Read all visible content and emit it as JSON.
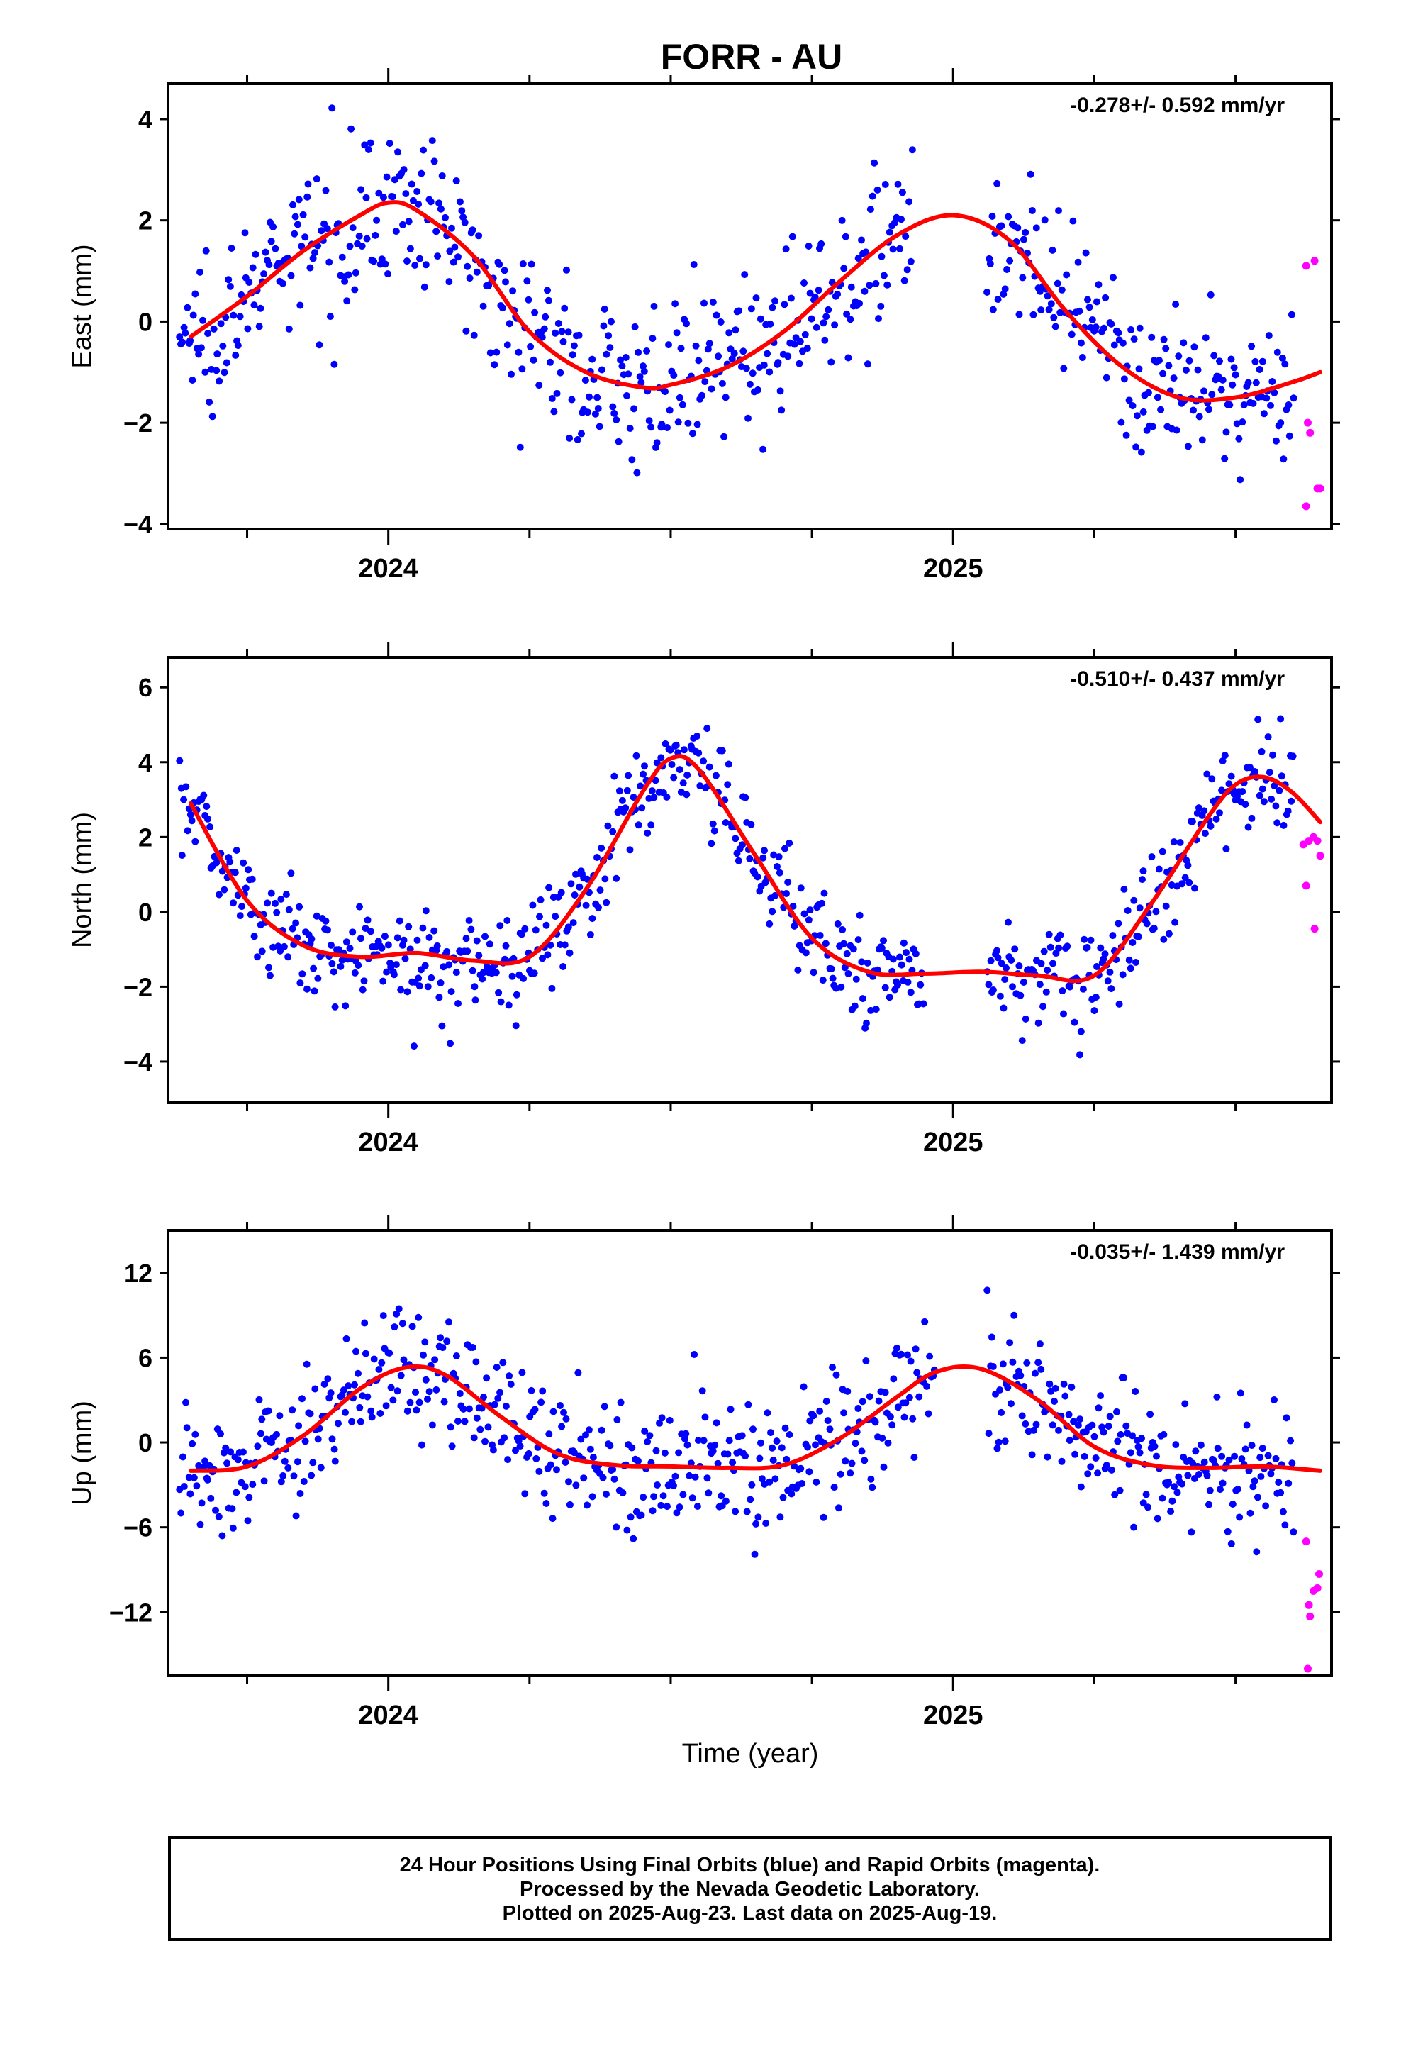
{
  "title": "FORR - AU",
  "x_axis_label": "Time (year)",
  "footer": {
    "line1": "24 Hour Positions Using Final Orbits (blue) and Rapid Orbits (magenta).",
    "line2": "Processed by the Nevada Geodetic Laboratory.",
    "line3": "Plotted on 2025-Aug-23. Last data on 2025-Aug-19."
  },
  "colors": {
    "final": "#0000ff",
    "rapid": "#ff00ff",
    "fit": "#ff0000",
    "axis": "#000000"
  },
  "chart_data": [
    {
      "type": "scatter",
      "component": "east",
      "ylabel": "East (mm)",
      "rate_text": "-0.278+/- 0.592 mm/yr",
      "xlim": [
        2023.61,
        2025.67
      ],
      "ylim": [
        -4.1,
        4.7
      ],
      "yticks": [
        -4,
        -2,
        0,
        2,
        4
      ],
      "xticks_major": [
        2024,
        2025
      ],
      "xtick_labels": [
        "2024",
        "2025"
      ],
      "xticks_minor": [
        2023.75,
        2024.25,
        2024.5,
        2024.75,
        2025.25,
        2025.5
      ],
      "fit_curve": {
        "x": [
          2023.65,
          2023.75,
          2023.85,
          2023.95,
          2024.0,
          2024.05,
          2024.15,
          2024.25,
          2024.35,
          2024.45,
          2024.5,
          2024.6,
          2024.7,
          2024.8,
          2024.9,
          2025.0,
          2025.1,
          2025.2,
          2025.3,
          2025.4,
          2025.5,
          2025.6,
          2025.65
        ],
        "y": [
          -0.3,
          0.5,
          1.4,
          2.1,
          2.35,
          2.2,
          1.3,
          -0.2,
          -1.0,
          -1.3,
          -1.25,
          -0.9,
          -0.2,
          0.8,
          1.7,
          2.1,
          1.6,
          0.2,
          -0.9,
          -1.5,
          -1.5,
          -1.2,
          -1.0
        ]
      },
      "final_scatter": 0.75,
      "rapid_points": {
        "x": [
          2025.625,
          2025.64,
          2025.628,
          2025.632,
          2025.625,
          2025.645,
          2025.65
        ],
        "y": [
          1.1,
          1.2,
          -2.0,
          -2.2,
          -3.65,
          -3.3,
          -3.3
        ]
      }
    },
    {
      "type": "scatter",
      "component": "north",
      "ylabel": "North (mm)",
      "rate_text": "-0.510+/- 0.437 mm/yr",
      "xlim": [
        2023.61,
        2025.67
      ],
      "ylim": [
        -5.1,
        6.8
      ],
      "yticks": [
        -4,
        -2,
        0,
        2,
        4,
        6
      ],
      "xticks_major": [
        2024,
        2025
      ],
      "xtick_labels": [
        "2024",
        "2025"
      ],
      "xticks_minor": [
        2023.75,
        2024.25,
        2024.5,
        2024.75,
        2025.25,
        2025.5
      ],
      "fit_curve": {
        "x": [
          2023.65,
          2023.75,
          2023.85,
          2023.95,
          2024.05,
          2024.15,
          2024.25,
          2024.35,
          2024.45,
          2024.5,
          2024.55,
          2024.65,
          2024.75,
          2024.85,
          2024.95,
          2025.05,
          2025.15,
          2025.25,
          2025.35,
          2025.45,
          2025.5,
          2025.55,
          2025.6,
          2025.65
        ],
        "y": [
          2.9,
          0.3,
          -0.9,
          -1.2,
          -1.1,
          -1.3,
          -1.2,
          0.6,
          3.2,
          4.1,
          3.8,
          1.5,
          -0.7,
          -1.6,
          -1.65,
          -1.6,
          -1.7,
          -1.7,
          0.2,
          2.5,
          3.4,
          3.6,
          3.2,
          2.4
        ]
      },
      "final_scatter": 0.7,
      "rapid_points": {
        "x": [
          2025.62,
          2025.625,
          2025.63,
          2025.638,
          2025.645,
          2025.65,
          2025.64
        ],
        "y": [
          1.8,
          0.7,
          1.9,
          2.0,
          1.9,
          1.5,
          -0.45
        ]
      }
    },
    {
      "type": "scatter",
      "component": "up",
      "ylabel": "Up (mm)",
      "rate_text": "-0.035+/- 1.439 mm/yr",
      "xlim": [
        2023.61,
        2025.67
      ],
      "ylim": [
        -16.5,
        15
      ],
      "yticks": [
        -12,
        -6,
        0,
        6,
        12
      ],
      "xticks_major": [
        2024,
        2025
      ],
      "xtick_labels": [
        "2024",
        "2025"
      ],
      "xticks_minor": [
        2023.75,
        2024.25,
        2024.5,
        2024.75,
        2025.25,
        2025.5
      ],
      "fit_curve": {
        "x": [
          2023.65,
          2023.75,
          2023.85,
          2023.95,
          2024.03,
          2024.1,
          2024.2,
          2024.3,
          2024.4,
          2024.5,
          2024.6,
          2024.7,
          2024.8,
          2024.9,
          2024.97,
          2025.05,
          2025.15,
          2025.25,
          2025.35,
          2025.45,
          2025.55,
          2025.65
        ],
        "y": [
          -2.0,
          -1.7,
          0.5,
          3.8,
          5.3,
          4.8,
          1.8,
          -0.8,
          -1.6,
          -1.7,
          -1.8,
          -1.6,
          0.3,
          3.2,
          5.0,
          5.2,
          3.0,
          -0.3,
          -1.6,
          -1.8,
          -1.7,
          -2.0
        ]
      },
      "final_scatter": 2.3,
      "rapid_points": {
        "x": [
          2025.625,
          2025.63,
          2025.632,
          2025.638,
          2025.645,
          2025.648,
          2025.628
        ],
        "y": [
          -7.0,
          -11.5,
          -12.3,
          -10.5,
          -10.3,
          -9.3,
          -16.0
        ]
      }
    }
  ]
}
